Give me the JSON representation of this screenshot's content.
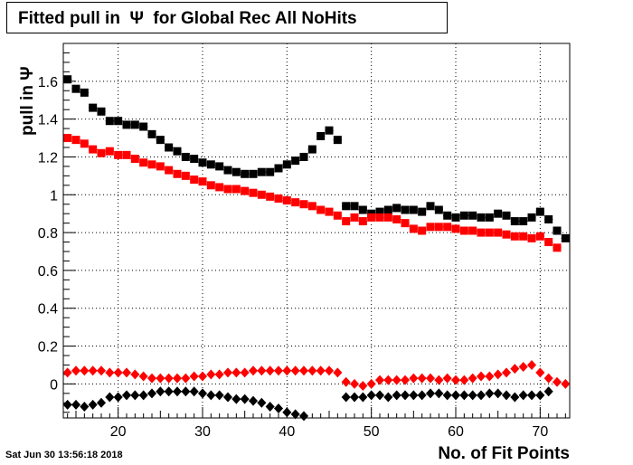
{
  "chart_data": {
    "type": "scatter",
    "title": "Fitted pull in  Ψ  for Global Rec All NoHits",
    "xlabel": "No. of Fit Points",
    "ylabel": "pull in Ψ",
    "xlim": [
      13.5,
      73.5
    ],
    "ylim": [
      -0.18,
      1.8
    ],
    "xticks": [
      "20",
      "30",
      "40",
      "50",
      "60",
      "70"
    ],
    "yticks": [
      "0",
      "0.2",
      "0.4",
      "0.6",
      "0.8",
      "1",
      "1.2",
      "1.4",
      "1.6"
    ],
    "grid": true,
    "series": [
      {
        "color": "#000000",
        "marker": "square",
        "x": [
          14,
          15,
          16,
          17,
          18,
          19,
          20,
          21,
          22,
          23,
          24,
          25,
          26,
          27,
          28,
          29,
          30,
          31,
          32,
          33,
          34,
          35,
          36,
          37,
          38,
          39,
          40,
          41,
          42,
          43,
          44,
          45,
          46,
          47,
          48,
          49,
          50,
          51,
          52,
          53,
          54,
          55,
          56,
          57,
          58,
          59,
          60,
          61,
          62,
          63,
          64,
          65,
          66,
          67,
          68,
          69,
          70,
          71,
          72,
          73
        ],
        "y": [
          1.61,
          1.56,
          1.54,
          1.46,
          1.44,
          1.39,
          1.39,
          1.37,
          1.37,
          1.36,
          1.32,
          1.29,
          1.25,
          1.23,
          1.2,
          1.19,
          1.17,
          1.16,
          1.15,
          1.13,
          1.12,
          1.11,
          1.11,
          1.12,
          1.12,
          1.14,
          1.16,
          1.18,
          1.2,
          1.24,
          1.31,
          1.34,
          1.29,
          0.94,
          0.94,
          0.92,
          0.9,
          0.91,
          0.92,
          0.93,
          0.92,
          0.92,
          0.91,
          0.94,
          0.92,
          0.89,
          0.88,
          0.89,
          0.89,
          0.88,
          0.88,
          0.9,
          0.89,
          0.86,
          0.86,
          0.88,
          0.91,
          0.87,
          0.81,
          0.77
        ]
      },
      {
        "color": "#ff0000",
        "marker": "square",
        "x": [
          14,
          15,
          16,
          17,
          18,
          19,
          20,
          21,
          22,
          23,
          24,
          25,
          26,
          27,
          28,
          29,
          30,
          31,
          32,
          33,
          34,
          35,
          36,
          37,
          38,
          39,
          40,
          41,
          42,
          43,
          44,
          45,
          46,
          47,
          48,
          49,
          50,
          51,
          52,
          53,
          54,
          55,
          56,
          57,
          58,
          59,
          60,
          61,
          62,
          63,
          64,
          65,
          66,
          67,
          68,
          69,
          70,
          71,
          72
        ],
        "y": [
          1.3,
          1.29,
          1.27,
          1.24,
          1.22,
          1.23,
          1.21,
          1.21,
          1.19,
          1.17,
          1.16,
          1.15,
          1.13,
          1.11,
          1.1,
          1.08,
          1.07,
          1.05,
          1.04,
          1.03,
          1.03,
          1.02,
          1.01,
          1.0,
          0.99,
          0.98,
          0.97,
          0.96,
          0.95,
          0.94,
          0.92,
          0.91,
          0.89,
          0.86,
          0.88,
          0.86,
          0.88,
          0.88,
          0.88,
          0.87,
          0.85,
          0.82,
          0.81,
          0.83,
          0.83,
          0.83,
          0.82,
          0.81,
          0.81,
          0.8,
          0.8,
          0.8,
          0.79,
          0.78,
          0.78,
          0.77,
          0.78,
          0.75,
          0.72
        ]
      },
      {
        "color": "#ff0000",
        "marker": "diamond",
        "x": [
          14,
          15,
          16,
          17,
          18,
          19,
          20,
          21,
          22,
          23,
          24,
          25,
          26,
          27,
          28,
          29,
          30,
          31,
          32,
          33,
          34,
          35,
          36,
          37,
          38,
          39,
          40,
          41,
          42,
          43,
          44,
          45,
          46,
          47,
          48,
          49,
          50,
          51,
          52,
          53,
          54,
          55,
          56,
          57,
          58,
          59,
          60,
          61,
          62,
          63,
          64,
          65,
          66,
          67,
          68,
          69,
          70,
          71,
          72,
          73
        ],
        "y": [
          0.06,
          0.07,
          0.07,
          0.07,
          0.07,
          0.06,
          0.06,
          0.06,
          0.05,
          0.04,
          0.03,
          0.03,
          0.03,
          0.03,
          0.03,
          0.04,
          0.04,
          0.05,
          0.05,
          0.06,
          0.06,
          0.06,
          0.07,
          0.07,
          0.07,
          0.07,
          0.07,
          0.07,
          0.07,
          0.07,
          0.07,
          0.07,
          0.06,
          0.01,
          0.0,
          -0.01,
          0.0,
          0.02,
          0.02,
          0.02,
          0.02,
          0.03,
          0.03,
          0.03,
          0.02,
          0.03,
          0.02,
          0.02,
          0.03,
          0.04,
          0.04,
          0.05,
          0.06,
          0.08,
          0.09,
          0.1,
          0.06,
          0.03,
          0.01,
          0.0
        ]
      },
      {
        "color": "#000000",
        "marker": "diamond",
        "x": [
          14,
          15,
          16,
          17,
          18,
          19,
          20,
          21,
          22,
          23,
          24,
          25,
          26,
          27,
          28,
          29,
          30,
          31,
          32,
          33,
          34,
          35,
          36,
          37,
          38,
          39,
          40,
          41,
          42,
          47,
          48,
          49,
          50,
          51,
          52,
          53,
          54,
          55,
          56,
          57,
          58,
          59,
          60,
          61,
          62,
          63,
          64,
          65,
          66,
          67,
          68,
          69,
          70,
          71
        ],
        "y": [
          -0.11,
          -0.11,
          -0.12,
          -0.11,
          -0.1,
          -0.07,
          -0.07,
          -0.06,
          -0.06,
          -0.06,
          -0.05,
          -0.04,
          -0.04,
          -0.04,
          -0.04,
          -0.04,
          -0.05,
          -0.06,
          -0.06,
          -0.07,
          -0.08,
          -0.08,
          -0.09,
          -0.1,
          -0.12,
          -0.13,
          -0.15,
          -0.16,
          -0.17,
          -0.07,
          -0.07,
          -0.07,
          -0.06,
          -0.06,
          -0.07,
          -0.06,
          -0.06,
          -0.06,
          -0.06,
          -0.05,
          -0.05,
          -0.06,
          -0.06,
          -0.06,
          -0.06,
          -0.06,
          -0.05,
          -0.05,
          -0.06,
          -0.07,
          -0.06,
          -0.06,
          -0.06,
          -0.04
        ]
      }
    ]
  },
  "footer": {
    "timestamp": "Sat Jun 30 13:56:18 2018"
  }
}
